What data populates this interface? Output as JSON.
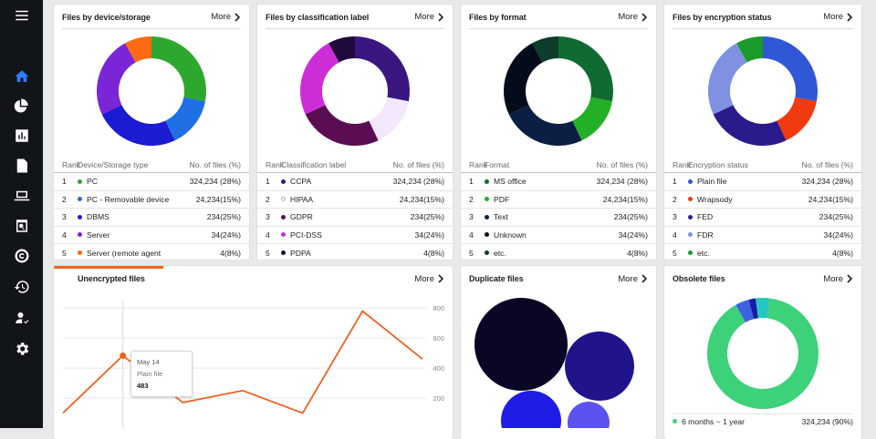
{
  "sidebar": {
    "items": [
      {
        "icon": "menu-icon"
      },
      {
        "icon": "home-icon",
        "active": true
      },
      {
        "icon": "pie-chart-icon"
      },
      {
        "icon": "bar-chart-icon"
      },
      {
        "icon": "document-icon"
      },
      {
        "icon": "laptop-icon"
      },
      {
        "icon": "search-file-icon"
      },
      {
        "icon": "copyright-icon"
      },
      {
        "icon": "history-icon"
      },
      {
        "icon": "user-check-icon"
      },
      {
        "icon": "gear-icon"
      }
    ]
  },
  "more_label": "More",
  "cards": {
    "device": {
      "title": "Files by device/storage",
      "headers": {
        "rank": "Rank",
        "name": "Device/Storage type",
        "value": "No. of files (%)"
      },
      "rows": [
        {
          "rank": "1",
          "name": "PC",
          "value": "324,234 (28%)",
          "color": "#2ea72e"
        },
        {
          "rank": "2",
          "name": "PC - Removable device",
          "value": "24,234(15%)",
          "color": "#1f6fe5"
        },
        {
          "rank": "3",
          "name": "DBMS",
          "value": "234(25%)",
          "color": "#1b1bd1"
        },
        {
          "rank": "4",
          "name": "Server",
          "value": "34(24%)",
          "color": "#7a26d6"
        },
        {
          "rank": "5",
          "name": "Server (remote agent",
          "value": "4(8%)",
          "color": "#ff6a13"
        }
      ],
      "chart_data": {
        "type": "pie",
        "labels": [
          "PC",
          "PC - Removable device",
          "DBMS",
          "Server",
          "Server (remote agent"
        ],
        "values": [
          28,
          15,
          25,
          24,
          8
        ]
      }
    },
    "classification": {
      "title": "Files by classification label",
      "headers": {
        "rank": "Rank",
        "name": "Classification label",
        "value": "No. of files (%)"
      },
      "rows": [
        {
          "rank": "1",
          "name": "CCPA",
          "value": "324,234 (28%)",
          "color": "#3a1780"
        },
        {
          "rank": "2",
          "name": "HIPAA",
          "value": "24,234(15%)",
          "color": "#f3e8fb",
          "hollow": true
        },
        {
          "rank": "3",
          "name": "GDPR",
          "value": "234(25%)",
          "color": "#5a0d52"
        },
        {
          "rank": "4",
          "name": "PCI-DSS",
          "value": "34(24%)",
          "color": "#cc2dd6"
        },
        {
          "rank": "5",
          "name": "PDPA",
          "value": "4(8%)",
          "color": "#1e0a3c"
        }
      ],
      "chart_data": {
        "type": "pie",
        "labels": [
          "CCPA",
          "HIPAA",
          "GDPR",
          "PCI-DSS",
          "PDPA"
        ],
        "values": [
          28,
          15,
          25,
          24,
          8
        ]
      }
    },
    "format": {
      "title": "Files by format",
      "headers": {
        "rank": "Rank",
        "name": "Format",
        "value": "No. of files (%)"
      },
      "rows": [
        {
          "rank": "1",
          "name": "MS office",
          "value": "324,234 (28%)",
          "color": "#0f6b32"
        },
        {
          "rank": "2",
          "name": "PDF",
          "value": "24,234(15%)",
          "color": "#23b026"
        },
        {
          "rank": "3",
          "name": "Text",
          "value": "234(25%)",
          "color": "#0b1f45"
        },
        {
          "rank": "4",
          "name": "Unknown",
          "value": "34(24%)",
          "color": "#040b1a"
        },
        {
          "rank": "5",
          "name": "etc.",
          "value": "4(8%)",
          "color": "#0c3d2a"
        }
      ],
      "chart_data": {
        "type": "pie",
        "labels": [
          "MS office",
          "PDF",
          "Text",
          "Unknown",
          "etc."
        ],
        "values": [
          28,
          15,
          25,
          24,
          8
        ]
      }
    },
    "encryption": {
      "title": "Files by encryption status",
      "headers": {
        "rank": "Rank",
        "name": "Encryption status",
        "value": "No. of files (%)"
      },
      "rows": [
        {
          "rank": "1",
          "name": "Plain file",
          "value": "324,234 (28%)",
          "color": "#2f57d6"
        },
        {
          "rank": "2",
          "name": "Wrapsody",
          "value": "24,234(15%)",
          "color": "#f03a0f"
        },
        {
          "rank": "3",
          "name": "FED",
          "value": "234(25%)",
          "color": "#2a1b8c"
        },
        {
          "rank": "4",
          "name": "FDR",
          "value": "34(24%)",
          "color": "#7f91e0"
        },
        {
          "rank": "5",
          "name": "etc.",
          "value": "4(8%)",
          "color": "#1b9b2a"
        }
      ],
      "chart_data": {
        "type": "pie",
        "labels": [
          "Plain file",
          "Wrapsody",
          "FED",
          "FDR",
          "etc."
        ],
        "values": [
          28,
          15,
          25,
          24,
          8
        ]
      }
    },
    "unencrypted": {
      "title": "Unencrypted files",
      "tooltip": {
        "date": "May 14",
        "label": "Plain file",
        "value": "483"
      },
      "chart_data": {
        "type": "line",
        "x": [
          0,
          1,
          2,
          3,
          4,
          5,
          6
        ],
        "values": [
          100,
          483,
          170,
          250,
          100,
          780,
          460
        ],
        "yticks": [
          "800",
          "600",
          "400",
          "200"
        ],
        "ylim": [
          0,
          850
        ]
      }
    },
    "duplicate": {
      "title": "Duplicate files",
      "chart_data": {
        "type": "scatter",
        "description_values": [
          100,
          55,
          40,
          20
        ]
      }
    },
    "obsolete": {
      "title": "Obsolete files",
      "legend": {
        "name": "6 months ~ 1 year",
        "value": "324,234 (90%)",
        "color": "#3dd17a"
      },
      "chart_data": {
        "type": "pie",
        "values": [
          90,
          4,
          2,
          4
        ],
        "colors": [
          "#3dd17a",
          "#3c63e0",
          "#1a1aa8",
          "#26c7c0"
        ]
      }
    }
  }
}
